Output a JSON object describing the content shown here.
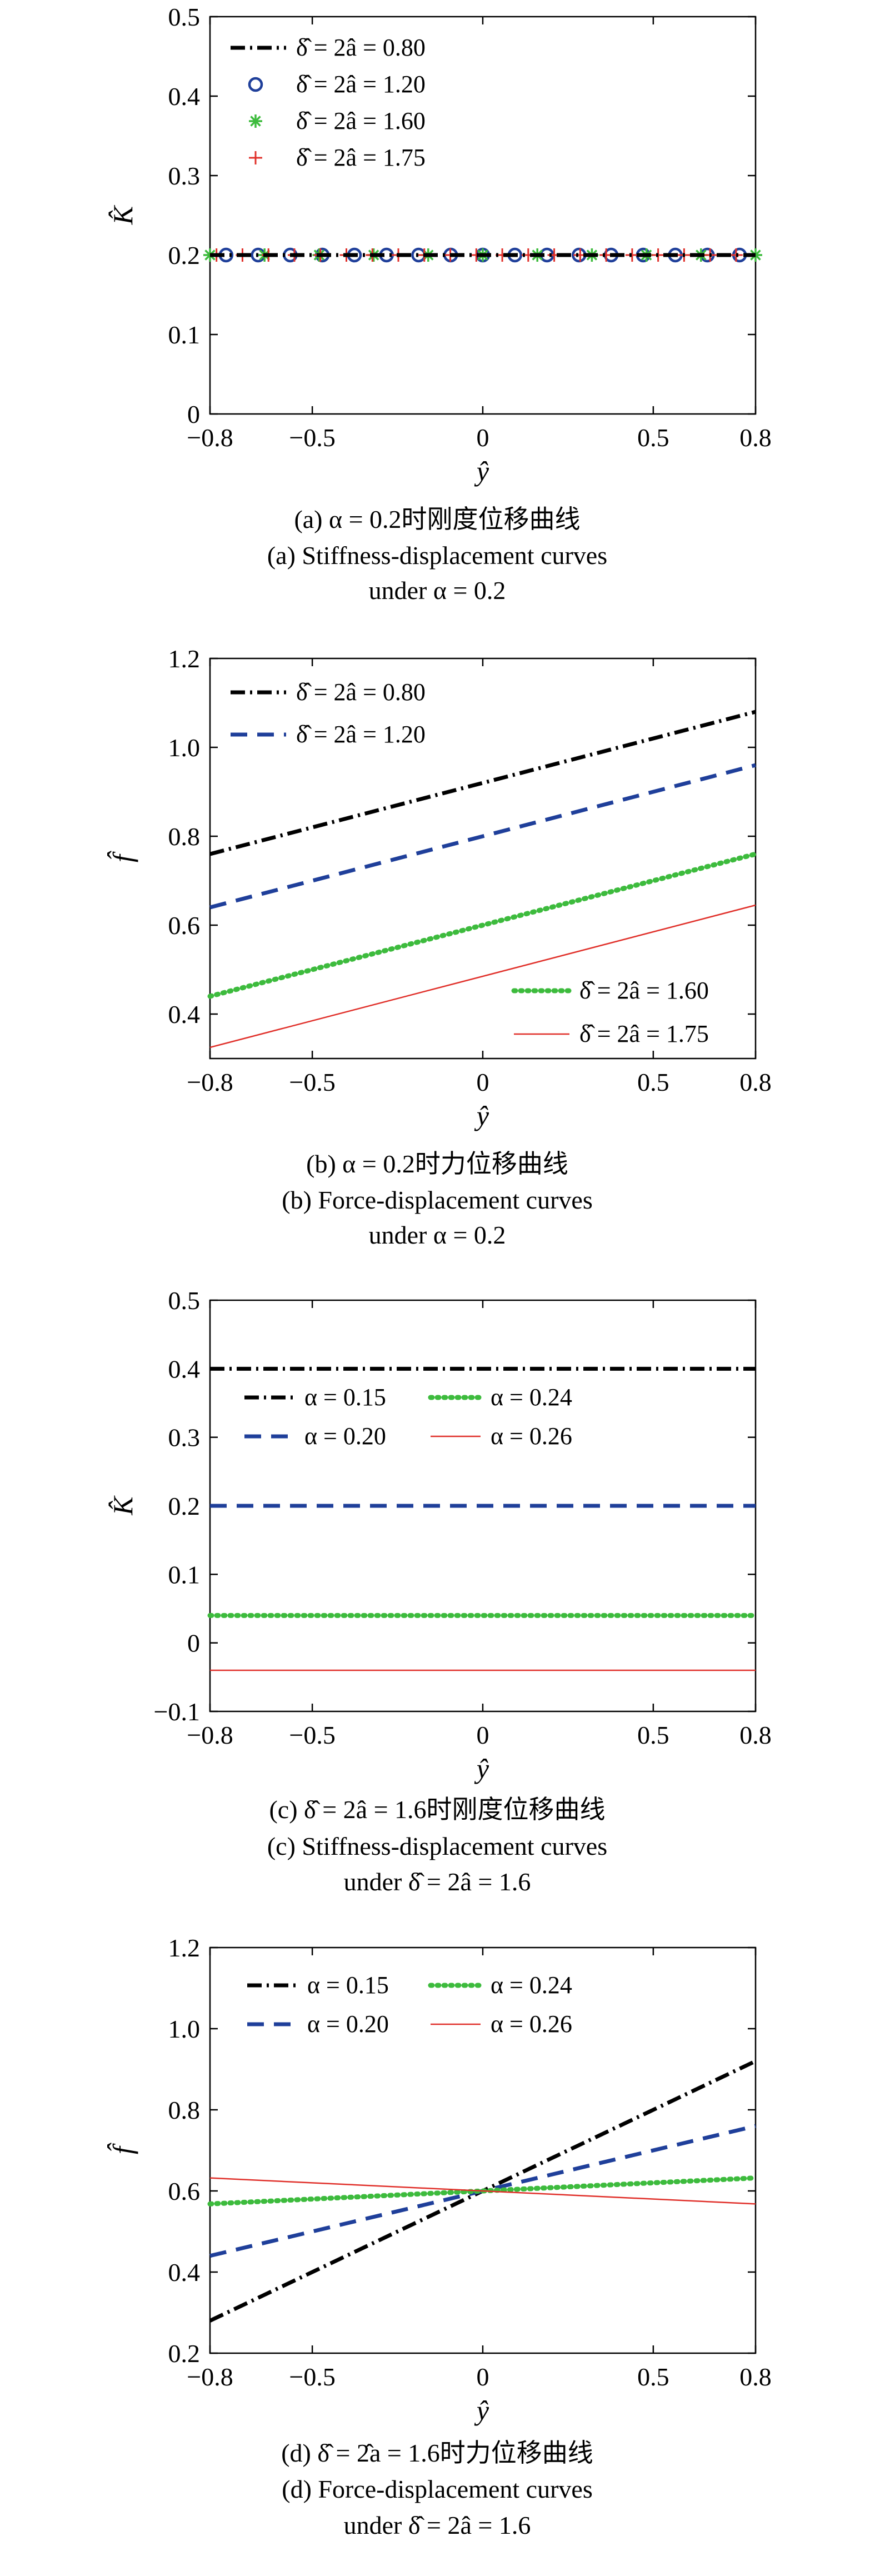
{
  "chart_data": [
    {
      "type": "line",
      "panel": "a",
      "xlabel": "ŷ",
      "ylabel": "K̂",
      "xlim": [
        -0.8,
        0.8
      ],
      "ylim": [
        0,
        0.5
      ],
      "xticks": [
        -0.8,
        -0.5,
        0,
        0.5,
        0.8
      ],
      "xtick_labels": [
        "−0.8",
        "−0.5",
        "0",
        "0.5",
        "0.8"
      ],
      "yticks": [
        0,
        0.1,
        0.2,
        0.3,
        0.4,
        0.5
      ],
      "ytick_labels": [
        "0",
        "0.1",
        "0.2",
        "0.3",
        "0.4",
        "0.5"
      ],
      "legend_position": "top-left",
      "x": [
        -0.8,
        0.8
      ],
      "series": [
        {
          "name": "δ̂ = 2â = 0.80",
          "values": [
            0.2,
            0.2
          ],
          "color": "#000000",
          "style": "dashdot"
        },
        {
          "name": "δ̂ = 2â = 1.20",
          "values": [
            0.2,
            0.2
          ],
          "color": "#1f3f9a",
          "style": "circle"
        },
        {
          "name": "δ̂ = 2â = 1.60",
          "values": [
            0.2,
            0.2
          ],
          "color": "#3dbb3d",
          "style": "asterisk"
        },
        {
          "name": "δ̂ = 2â = 1.75",
          "values": [
            0.2,
            0.2
          ],
          "color": "#e0302a",
          "style": "plus"
        }
      ],
      "caption_lines": [
        "(a) α = 0.2时刚度位移曲线",
        "(a) Stiffness-displacement curves",
        "under α = 0.2"
      ]
    },
    {
      "type": "line",
      "panel": "b",
      "xlabel": "ŷ",
      "ylabel": "f̂",
      "xlim": [
        -0.8,
        0.8
      ],
      "ylim": [
        0.3,
        1.2
      ],
      "xticks": [
        -0.8,
        -0.5,
        0,
        0.5,
        0.8
      ],
      "xtick_labels": [
        "−0.8",
        "−0.5",
        "0",
        "0.5",
        "0.8"
      ],
      "yticks": [
        0.4,
        0.6,
        0.8,
        1.0,
        1.2
      ],
      "ytick_labels": [
        "0.4",
        "0.6",
        "0.8",
        "1.0",
        "1.2"
      ],
      "legend_position": "top-left / bottom-right",
      "x": [
        -0.8,
        0.8
      ],
      "series": [
        {
          "name": "δ̂ = 2â = 0.80",
          "values": [
            0.76,
            1.08
          ],
          "color": "#000000",
          "style": "dashdot"
        },
        {
          "name": "δ̂ = 2â = 1.20",
          "values": [
            0.64,
            0.96
          ],
          "color": "#1f3f9a",
          "style": "dashed"
        },
        {
          "name": "δ̂ = 2â = 1.60",
          "values": [
            0.44,
            0.76
          ],
          "color": "#3dbb3d",
          "style": "dotted"
        },
        {
          "name": "δ̂ = 2â = 1.75",
          "values": [
            0.325,
            0.645
          ],
          "color": "#e0302a",
          "style": "solid"
        }
      ],
      "caption_lines": [
        "(b) α = 0.2时力位移曲线",
        "(b) Force-displacement curves",
        "under α = 0.2"
      ]
    },
    {
      "type": "line",
      "panel": "c",
      "xlabel": "ŷ",
      "ylabel": "K̂",
      "xlim": [
        -0.8,
        0.8
      ],
      "ylim": [
        -0.1,
        0.5
      ],
      "xticks": [
        -0.8,
        -0.5,
        0,
        0.5,
        0.8
      ],
      "xtick_labels": [
        "−0.8",
        "−0.5",
        "0",
        "0.5",
        "0.8"
      ],
      "yticks": [
        -0.1,
        0,
        0.1,
        0.2,
        0.3,
        0.4,
        0.5
      ],
      "ytick_labels": [
        "−0.1",
        "0",
        "0.1",
        "0.2",
        "0.3",
        "0.4",
        "0.5"
      ],
      "legend_position": "upper-middle",
      "x": [
        -0.8,
        0.8
      ],
      "series": [
        {
          "name": "α = 0.15",
          "values": [
            0.4,
            0.4
          ],
          "color": "#000000",
          "style": "dashdot"
        },
        {
          "name": "α = 0.20",
          "values": [
            0.2,
            0.2
          ],
          "color": "#1f3f9a",
          "style": "dashed"
        },
        {
          "name": "α = 0.24",
          "values": [
            0.04,
            0.04
          ],
          "color": "#3dbb3d",
          "style": "dotted"
        },
        {
          "name": "α = 0.26",
          "values": [
            -0.04,
            -0.04
          ],
          "color": "#e0302a",
          "style": "solid"
        }
      ],
      "caption_lines": [
        "(c) δ̂ = 2â = 1.6时刚度位移曲线",
        "(c) Stiffness-displacement curves",
        "under δ̂ = 2â = 1.6"
      ]
    },
    {
      "type": "line",
      "panel": "d",
      "xlabel": "ŷ",
      "ylabel": "f̂",
      "xlim": [
        -0.8,
        0.8
      ],
      "ylim": [
        0.2,
        1.2
      ],
      "xticks": [
        -0.8,
        -0.5,
        0,
        0.5,
        0.8
      ],
      "xtick_labels": [
        "−0.8",
        "−0.5",
        "0",
        "0.5",
        "0.8"
      ],
      "yticks": [
        0.2,
        0.4,
        0.6,
        0.8,
        1.0,
        1.2
      ],
      "ytick_labels": [
        "0.2",
        "0.4",
        "0.6",
        "0.8",
        "1.0",
        "1.2"
      ],
      "legend_position": "top-left",
      "x": [
        -0.8,
        0.8
      ],
      "series": [
        {
          "name": "α = 0.15",
          "values": [
            0.28,
            0.92
          ],
          "color": "#000000",
          "style": "dashdot"
        },
        {
          "name": "α = 0.20",
          "values": [
            0.44,
            0.76
          ],
          "color": "#1f3f9a",
          "style": "dashed"
        },
        {
          "name": "α = 0.24",
          "values": [
            0.568,
            0.632
          ],
          "color": "#3dbb3d",
          "style": "dotted"
        },
        {
          "name": "α = 0.26",
          "values": [
            0.632,
            0.568
          ],
          "color": "#e0302a",
          "style": "solid"
        }
      ],
      "caption_lines": [
        "(d) δ̂ = 2̂a = 1.6时力位移曲线",
        "(d) Force-displacement curves",
        "under δ̂ = 2â = 1.6"
      ]
    }
  ]
}
